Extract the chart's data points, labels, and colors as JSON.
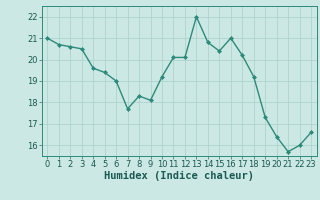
{
  "x": [
    0,
    1,
    2,
    3,
    4,
    5,
    6,
    7,
    8,
    9,
    10,
    11,
    12,
    13,
    14,
    15,
    16,
    17,
    18,
    19,
    20,
    21,
    22,
    23
  ],
  "y": [
    21.0,
    20.7,
    20.6,
    20.5,
    19.6,
    19.4,
    19.0,
    17.7,
    18.3,
    18.1,
    19.2,
    20.1,
    20.1,
    22.0,
    20.8,
    20.4,
    21.0,
    20.2,
    19.2,
    17.3,
    16.4,
    15.7,
    16.0,
    16.6
  ],
  "line_color": "#2d8a7a",
  "marker": "D",
  "marker_size": 2.0,
  "bg_color": "#cce8e4",
  "grid_color": "#aacfca",
  "xlabel": "Humidex (Indice chaleur)",
  "ylim": [
    15.5,
    22.5
  ],
  "xlim": [
    -0.5,
    23.5
  ],
  "yticks": [
    16,
    17,
    18,
    19,
    20,
    21,
    22
  ],
  "xticks": [
    0,
    1,
    2,
    3,
    4,
    5,
    6,
    7,
    8,
    9,
    10,
    11,
    12,
    13,
    14,
    15,
    16,
    17,
    18,
    19,
    20,
    21,
    22,
    23
  ],
  "tick_color": "#2d6e60",
  "label_color": "#1a5a50",
  "axis_color": "#2d8a7a",
  "xlabel_fontsize": 7.5,
  "tick_fontsize": 6.0,
  "linewidth": 1.0
}
